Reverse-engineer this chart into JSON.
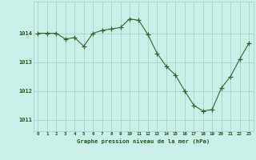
{
  "x": [
    0,
    1,
    2,
    3,
    4,
    5,
    6,
    7,
    8,
    9,
    10,
    11,
    12,
    13,
    14,
    15,
    16,
    17,
    18,
    19,
    20,
    21,
    22,
    23
  ],
  "y": [
    1014.0,
    1014.0,
    1014.0,
    1013.8,
    1013.85,
    1013.55,
    1014.0,
    1014.1,
    1014.15,
    1014.2,
    1014.5,
    1014.45,
    1013.95,
    1013.3,
    1012.85,
    1012.55,
    1012.0,
    1011.5,
    1011.3,
    1011.35,
    1012.1,
    1012.5,
    1013.1,
    1013.65
  ],
  "line_color": "#2d6a2d",
  "marker": "+",
  "marker_color": "#2d6a2d",
  "bg_color": "#cceee8",
  "grid_color": "#9ecdc6",
  "label_color": "#1a5c1a",
  "xlabel": "Graphe pression niveau de la mer (hPa)",
  "yticks": [
    1011,
    1012,
    1013,
    1014
  ],
  "xtick_labels": [
    "0",
    "1",
    "2",
    "3",
    "4",
    "5",
    "6",
    "7",
    "8",
    "9",
    "10",
    "11",
    "12",
    "13",
    "14",
    "15",
    "16",
    "17",
    "18",
    "19",
    "20",
    "21",
    "22",
    "23"
  ],
  "xticks": [
    0,
    1,
    2,
    3,
    4,
    5,
    6,
    7,
    8,
    9,
    10,
    11,
    12,
    13,
    14,
    15,
    16,
    17,
    18,
    19,
    20,
    21,
    22,
    23
  ],
  "ylim": [
    1010.6,
    1015.1
  ],
  "xlim": [
    -0.5,
    23.5
  ]
}
